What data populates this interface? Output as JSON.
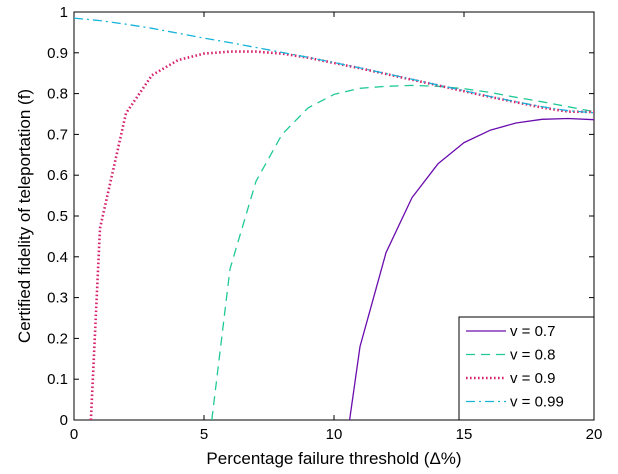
{
  "chart_data": {
    "type": "line",
    "xlabel": "Percentage failure threshold (Δ%)",
    "ylabel": "Certified fidelity of teleportation (f)",
    "xlim": [
      0,
      20
    ],
    "ylim": [
      0,
      1
    ],
    "x_ticks": [
      "0",
      "5",
      "10",
      "15",
      "20"
    ],
    "y_ticks": [
      "0",
      "0.1",
      "0.2",
      "0.3",
      "0.4",
      "0.5",
      "0.6",
      "0.7",
      "0.8",
      "0.9",
      "1"
    ],
    "grid": false,
    "legend_position": "bottom-right",
    "series": [
      {
        "name": "v = 0.7",
        "color": "#6a0dad",
        "style": "solid",
        "points": [
          [
            10.6,
            0
          ],
          [
            11,
            0.18
          ],
          [
            12,
            0.41
          ],
          [
            13,
            0.545
          ],
          [
            14,
            0.628
          ],
          [
            15,
            0.68
          ],
          [
            16,
            0.71
          ],
          [
            17,
            0.728
          ],
          [
            18,
            0.737
          ],
          [
            19,
            0.739
          ],
          [
            20,
            0.736
          ]
        ]
      },
      {
        "name": "v = 0.8",
        "color": "#20c997",
        "style": "dashed",
        "points": [
          [
            5.3,
            0
          ],
          [
            6,
            0.37
          ],
          [
            7,
            0.585
          ],
          [
            8,
            0.7
          ],
          [
            9,
            0.765
          ],
          [
            10,
            0.798
          ],
          [
            11,
            0.813
          ],
          [
            12,
            0.818
          ],
          [
            13,
            0.82
          ],
          [
            14,
            0.818
          ],
          [
            15,
            0.812
          ],
          [
            16,
            0.803
          ],
          [
            17,
            0.791
          ],
          [
            18,
            0.78
          ],
          [
            19,
            0.768
          ],
          [
            20,
            0.756
          ]
        ]
      },
      {
        "name": "v = 0.9",
        "color": "#d6246e",
        "style": "dotted",
        "points": [
          [
            0.65,
            0
          ],
          [
            1,
            0.47
          ],
          [
            2,
            0.752
          ],
          [
            3,
            0.845
          ],
          [
            4,
            0.882
          ],
          [
            5,
            0.898
          ],
          [
            6,
            0.903
          ],
          [
            7,
            0.903
          ],
          [
            8,
            0.898
          ],
          [
            9,
            0.888
          ],
          [
            10,
            0.875
          ],
          [
            11,
            0.862
          ],
          [
            12,
            0.848
          ],
          [
            13,
            0.834
          ],
          [
            14,
            0.82
          ],
          [
            15,
            0.806
          ],
          [
            16,
            0.792
          ],
          [
            17,
            0.779
          ],
          [
            18,
            0.766
          ],
          [
            19,
            0.756
          ],
          [
            20,
            0.755
          ]
        ]
      },
      {
        "name": "v = 0.99",
        "color": "#17b3d9",
        "style": "dashdot",
        "points": [
          [
            0,
            0.985
          ],
          [
            1,
            0.979
          ],
          [
            2,
            0.97
          ],
          [
            3,
            0.96
          ],
          [
            4,
            0.948
          ],
          [
            5,
            0.936
          ],
          [
            6,
            0.925
          ],
          [
            7,
            0.913
          ],
          [
            8,
            0.901
          ],
          [
            9,
            0.889
          ],
          [
            10,
            0.876
          ],
          [
            11,
            0.863
          ],
          [
            12,
            0.849
          ],
          [
            13,
            0.835
          ],
          [
            14,
            0.821
          ],
          [
            15,
            0.807
          ],
          [
            16,
            0.793
          ],
          [
            17,
            0.78
          ],
          [
            18,
            0.768
          ],
          [
            19,
            0.758
          ],
          [
            20,
            0.753
          ]
        ]
      }
    ]
  }
}
